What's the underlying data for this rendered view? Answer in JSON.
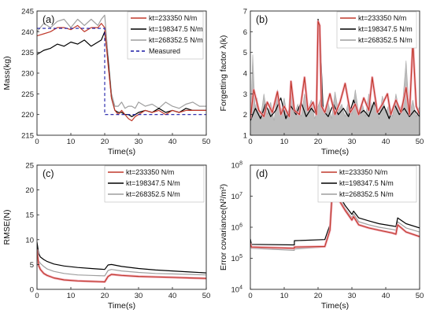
{
  "colors": {
    "red": "#c0392b",
    "red_fill": "#f2aab9",
    "black": "#000000",
    "gray": "#9e9e9e",
    "measured": "#1a1aa6"
  },
  "chart_data": [
    {
      "panel": "(a)",
      "type": "line",
      "xlabel": "Time(s)",
      "ylabel": "Mass(kg)",
      "xlim": [
        0,
        50
      ],
      "ylim": [
        215,
        245
      ],
      "xticks": [
        0,
        10,
        20,
        30,
        40,
        50
      ],
      "yticks": [
        215,
        220,
        225,
        230,
        235,
        240,
        245
      ],
      "legend_position": "top-right",
      "series": [
        {
          "name": "kt=233350 N/m",
          "color": "#c0392b",
          "x": [
            0,
            2,
            4,
            6,
            8,
            10,
            12,
            14,
            16,
            18,
            19,
            20,
            21,
            22,
            23,
            24,
            25,
            26,
            27,
            28,
            29,
            30,
            32,
            34,
            36,
            38,
            40,
            42,
            44,
            46,
            48,
            50
          ],
          "y": [
            239,
            239.5,
            240,
            241,
            241,
            240.5,
            241.5,
            240,
            241,
            241,
            242,
            241,
            232,
            224,
            221,
            220,
            221,
            220,
            219,
            218.5,
            219.5,
            220,
            221,
            220.5,
            221,
            220,
            221,
            220.5,
            221,
            221,
            221,
            221
          ]
        },
        {
          "name": "kt=198347.5 N/m",
          "color": "#000000",
          "x": [
            0,
            2,
            4,
            6,
            8,
            10,
            12,
            14,
            16,
            18,
            19,
            20,
            21,
            22,
            23,
            24,
            25,
            26,
            27,
            28,
            29,
            30,
            32,
            34,
            36,
            38,
            40,
            42,
            44,
            46,
            48,
            50
          ],
          "y": [
            234.5,
            235.5,
            236,
            237,
            236.5,
            237.5,
            237,
            238,
            236.5,
            237.5,
            238,
            240,
            233,
            224,
            221,
            220.5,
            220.5,
            220,
            220,
            219.5,
            220,
            220.5,
            221,
            220.5,
            221.5,
            220.5,
            221,
            220.5,
            221.5,
            221,
            221,
            221
          ]
        },
        {
          "name": "kt=268352.5 N/m",
          "color": "#9e9e9e",
          "x": [
            0,
            2,
            4,
            6,
            8,
            10,
            12,
            14,
            16,
            18,
            19,
            20,
            21,
            22,
            23,
            24,
            25,
            26,
            27,
            28,
            29,
            30,
            32,
            34,
            36,
            38,
            40,
            42,
            44,
            46,
            48,
            50
          ],
          "y": [
            240,
            242,
            241,
            242.5,
            243,
            241,
            243,
            241.5,
            243,
            241.5,
            243,
            244,
            234,
            225,
            222,
            222,
            223,
            221.5,
            222,
            222,
            221.5,
            223,
            222,
            222.5,
            221.5,
            223,
            222,
            221.5,
            222.5,
            223,
            222,
            222
          ]
        },
        {
          "name": "Measured",
          "color": "#1a1aa6",
          "dashed": true,
          "x": [
            0,
            20,
            20,
            50
          ],
          "y": [
            240.8,
            240.8,
            220,
            220
          ]
        }
      ]
    },
    {
      "panel": "(b)",
      "type": "line",
      "xlabel": "Time(s)",
      "ylabel": "Forgetting factor λ(k)",
      "xlim": [
        0,
        50
      ],
      "ylim": [
        1,
        7
      ],
      "xticks": [
        0,
        10,
        20,
        30,
        40,
        50
      ],
      "yticks": [
        1,
        2,
        3,
        4,
        5,
        6,
        7
      ],
      "legend_position": "top-right",
      "series": [
        {
          "name": "kt=233350 N/m",
          "color": "#c0392b",
          "x": [
            0,
            1,
            2.5,
            4,
            5,
            6.5,
            8,
            9,
            10,
            11.5,
            12,
            13,
            14.5,
            16,
            17,
            18.5,
            19.5,
            20,
            20.5,
            21,
            22,
            23.5,
            25,
            26.5,
            28,
            29.5,
            31,
            32,
            33.5,
            35,
            36,
            37.5,
            39,
            40.5,
            41.5,
            43,
            44.5,
            46,
            47,
            48,
            49,
            50
          ],
          "y": [
            1.8,
            3.2,
            2.2,
            1.9,
            2.6,
            2.1,
            3.1,
            2.0,
            2.4,
            1.9,
            3.6,
            2.2,
            2.0,
            3.8,
            2.2,
            2.6,
            2.0,
            6.5,
            6.3,
            2.4,
            2.1,
            3.0,
            2.0,
            2.6,
            3.5,
            2.1,
            2.5,
            2.0,
            2.8,
            2.2,
            3.8,
            2.1,
            2.5,
            3.0,
            2.0,
            2.7,
            2.1,
            3.3,
            2.0,
            5.5,
            2.4,
            2.0
          ]
        },
        {
          "name": "kt=198347.5 N/m",
          "color": "#000000",
          "x": [
            0,
            1.5,
            3,
            4.5,
            6,
            7.5,
            9,
            10.5,
            12,
            13.5,
            15,
            16.5,
            18,
            19.5,
            20,
            20.5,
            21.5,
            23,
            24.5,
            26,
            27.5,
            29,
            30.5,
            32,
            33.5,
            35,
            36.5,
            38,
            39.5,
            41,
            42.5,
            44,
            45.5,
            47,
            48.5,
            50
          ],
          "y": [
            1.7,
            2.3,
            1.8,
            2.5,
            1.9,
            2.2,
            2.8,
            1.8,
            2.4,
            2.0,
            2.6,
            1.9,
            2.3,
            2.0,
            6.6,
            6.2,
            2.2,
            1.9,
            2.5,
            2.0,
            2.3,
            1.9,
            2.7,
            2.0,
            2.2,
            1.9,
            2.6,
            2.0,
            2.4,
            1.8,
            2.5,
            2.0,
            2.3,
            1.9,
            2.2,
            1.9
          ]
        },
        {
          "name": "kt=268352.5 N/m",
          "color": "#9e9e9e",
          "x": [
            0,
            0.7,
            1.4,
            2,
            3,
            4,
            5,
            6,
            7,
            8,
            9,
            10,
            11,
            12,
            13,
            14,
            15,
            16,
            17,
            18,
            19,
            20,
            21,
            22,
            23,
            24,
            25,
            26,
            27,
            28,
            29,
            30,
            31,
            32,
            33,
            34,
            35,
            36,
            37,
            38,
            39,
            40,
            41,
            42,
            43,
            44,
            45,
            46,
            47,
            48,
            49,
            50
          ],
          "y": [
            1.5,
            4.9,
            2.3,
            2.8,
            1.8,
            3.0,
            2.0,
            2.6,
            1.7,
            3.2,
            2.1,
            2.8,
            1.8,
            3.3,
            2.0,
            2.5,
            1.9,
            3.0,
            2.2,
            2.7,
            1.8,
            2.4,
            2.9,
            2.0,
            2.6,
            1.8,
            3.1,
            2.2,
            2.5,
            1.9,
            2.7,
            2.0,
            3.2,
            2.1,
            2.6,
            1.9,
            3.0,
            2.3,
            2.7,
            1.8,
            2.9,
            2.1,
            2.5,
            1.9,
            3.0,
            2.2,
            2.6,
            4.6,
            2.0,
            2.7,
            1.9,
            2.4
          ]
        }
      ]
    },
    {
      "panel": "(c)",
      "type": "line",
      "xlabel": "Time(s)",
      "ylabel": "RMSE(N)",
      "xlim": [
        0,
        50
      ],
      "ylim": [
        0,
        25
      ],
      "xticks": [
        0,
        10,
        20,
        30,
        40,
        50
      ],
      "yticks": [
        0,
        5,
        10,
        15,
        20,
        25
      ],
      "legend_position": "top-right",
      "series": [
        {
          "name": "kt=233350 N/m",
          "color": "#c0392b",
          "x": [
            0,
            0.5,
            1,
            2,
            3,
            5,
            8,
            12,
            16,
            20,
            21,
            22,
            25,
            30,
            35,
            40,
            45,
            50
          ],
          "y": [
            8,
            4.8,
            4.0,
            3.2,
            2.8,
            2.3,
            1.9,
            1.7,
            1.6,
            1.5,
            2.6,
            3.0,
            2.8,
            2.6,
            2.5,
            2.4,
            2.3,
            2.2
          ]
        },
        {
          "name": "kt=198347.5 N/m",
          "color": "#000000",
          "x": [
            0,
            0.5,
            1,
            2,
            3,
            5,
            8,
            12,
            16,
            20,
            21,
            22,
            25,
            30,
            35,
            40,
            45,
            50
          ],
          "y": [
            9.5,
            7.2,
            6.5,
            6.0,
            5.6,
            5.1,
            4.7,
            4.4,
            4.2,
            4.0,
            4.9,
            5.0,
            4.6,
            4.2,
            3.9,
            3.7,
            3.5,
            3.3
          ]
        },
        {
          "name": "kt=268352.5 N/m",
          "color": "#9e9e9e",
          "x": [
            0,
            0.5,
            1,
            2,
            3,
            5,
            8,
            12,
            16,
            20,
            21,
            22,
            25,
            30,
            35,
            40,
            45,
            50
          ],
          "y": [
            8.5,
            5.8,
            5.2,
            4.6,
            4.1,
            3.6,
            3.2,
            2.9,
            2.8,
            2.7,
            3.8,
            4.0,
            3.7,
            3.4,
            3.2,
            3.1,
            3.0,
            2.9
          ]
        }
      ]
    },
    {
      "panel": "(d)",
      "type": "line",
      "xlabel": "Time(s)",
      "ylabel": "Error covariance(N²/m²)",
      "xlim": [
        0,
        50
      ],
      "ylim": [
        10000,
        100000000
      ],
      "yscale": "log",
      "xticks": [
        0,
        10,
        20,
        30,
        40,
        50
      ],
      "yticks": [
        10000,
        100000,
        1000000,
        10000000,
        100000000
      ],
      "yticklabels": [
        "10^4",
        "10^5",
        "10^6",
        "10^7",
        "10^8"
      ],
      "legend_position": "top-right",
      "series": [
        {
          "name": "kt=233350 N/m",
          "color": "#c0392b",
          "x": [
            0,
            0.3,
            13,
            13,
            22,
            23.5,
            24.5,
            26,
            28,
            30,
            30.5,
            32,
            35,
            38,
            42,
            43,
            43.5,
            46,
            50
          ],
          "y": [
            300000,
            230000,
            210000,
            230000,
            240000,
            800000,
            50000000,
            8000000,
            3500000,
            1700000,
            2200000,
            1200000,
            950000,
            800000,
            650000,
            600000,
            1200000,
            700000,
            500000
          ]
        },
        {
          "name": "kt=198347.5 N/m",
          "color": "#000000",
          "x": [
            0,
            0.3,
            13,
            13,
            22,
            23.5,
            24.5,
            26,
            28,
            30,
            30.5,
            32,
            35,
            38,
            42,
            43,
            43.5,
            46,
            50
          ],
          "y": [
            420000,
            280000,
            270000,
            370000,
            400000,
            1200000,
            90000000,
            12000000,
            5000000,
            2600000,
            3300000,
            2000000,
            1600000,
            1300000,
            1100000,
            1050000,
            2000000,
            1300000,
            950000
          ]
        },
        {
          "name": "kt=268352.5 N/m",
          "color": "#9e9e9e",
          "x": [
            0,
            0.3,
            13,
            13,
            22,
            23.5,
            24.5,
            26,
            28,
            30,
            30.5,
            32,
            35,
            38,
            42,
            43,
            43.5,
            46,
            50
          ],
          "y": [
            330000,
            210000,
            180000,
            200000,
            230000,
            900000,
            65000000,
            10000000,
            4000000,
            2000000,
            2700000,
            1500000,
            1200000,
            1000000,
            850000,
            800000,
            1500000,
            950000,
            700000
          ]
        }
      ]
    }
  ]
}
